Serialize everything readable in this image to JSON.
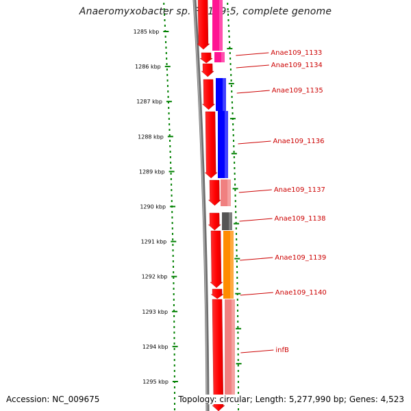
{
  "title": "Anaeromyxobacter sp. Fw109-5, complete genome",
  "ticks": [
    {
      "label": "1285 kbp"
    },
    {
      "label": "1286 kbp"
    },
    {
      "label": "1287 kbp"
    },
    {
      "label": "1288 kbp"
    },
    {
      "label": "1289 kbp"
    },
    {
      "label": "1290 kbp"
    },
    {
      "label": "1291 kbp"
    },
    {
      "label": "1292 kbp"
    },
    {
      "label": "1293 kbp"
    },
    {
      "label": "1294 kbp"
    },
    {
      "label": "1295 kbp"
    }
  ],
  "genes": [
    {
      "label": "Anae109_1133",
      "color": "#ff1493"
    },
    {
      "label": "Anae109_1134",
      "color": "#ff1493"
    },
    {
      "label": "Anae109_1135",
      "color": "#0000ff"
    },
    {
      "label": "Anae109_1136",
      "color": "#0000ff"
    },
    {
      "label": "Anae109_1137",
      "color": "#f08080"
    },
    {
      "label": "Anae109_1138",
      "color": "#555555"
    },
    {
      "label": "Anae109_1139",
      "color": "#ff8c00"
    },
    {
      "label": "Anae109_1140",
      "color": "#ff8c00"
    },
    {
      "label": "infB",
      "color": "#f08080"
    }
  ],
  "colors": {
    "backbone": "#777777",
    "forward_strand": "#ff0000",
    "tick": "#008000",
    "label": "#cc0000"
  },
  "footer": {
    "accession": "Accession: NC_009675",
    "topology": "Topology: circular; Length: 5,277,990 bp; Genes: 4,523"
  }
}
